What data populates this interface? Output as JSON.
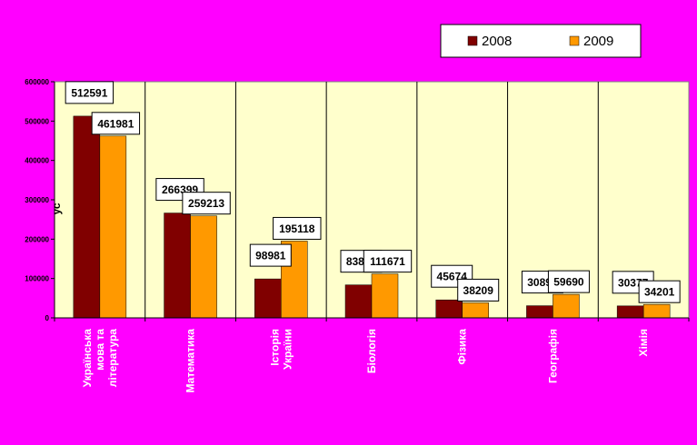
{
  "colors": {
    "background": "#ff00ff",
    "plot_area": "#ffffcc",
    "series_2008": "#800000",
    "series_2009": "#ff9900",
    "label_box": "#ffffff",
    "border": "#000000"
  },
  "chart_data": {
    "type": "bar",
    "title": "",
    "xlabel": "",
    "ylabel": "",
    "y_axis_fragment": "ус",
    "ylim": [
      0,
      600000
    ],
    "yticks": [
      0,
      100000,
      200000,
      300000,
      400000,
      500000,
      600000
    ],
    "ytick_labels": [
      "0",
      "100000",
      "200000",
      "300000",
      "400000",
      "500000",
      "600000"
    ],
    "grid": "vertical category separators",
    "legend_position": "top-right",
    "categories": [
      [
        "Українська",
        "мова та",
        "література"
      ],
      [
        "Математика"
      ],
      [
        "Історія",
        "України"
      ],
      [
        "Біологія"
      ],
      [
        "Фізика"
      ],
      [
        "Географія"
      ],
      [
        "Хімія"
      ]
    ],
    "series": [
      {
        "name": "2008",
        "color": "#800000",
        "values": [
          512591,
          266399,
          98981,
          83815,
          45674,
          30897,
          30377
        ],
        "labels": [
          "512591",
          "266399",
          "98981",
          "83815",
          "45674",
          "30897",
          "30377"
        ]
      },
      {
        "name": "2009",
        "color": "#ff9900",
        "values": [
          461981,
          259213,
          195118,
          111671,
          38209,
          59690,
          34201
        ],
        "labels": [
          "461981",
          "259213",
          "195118",
          "111671",
          "38209",
          "59690",
          "34201"
        ]
      }
    ]
  }
}
